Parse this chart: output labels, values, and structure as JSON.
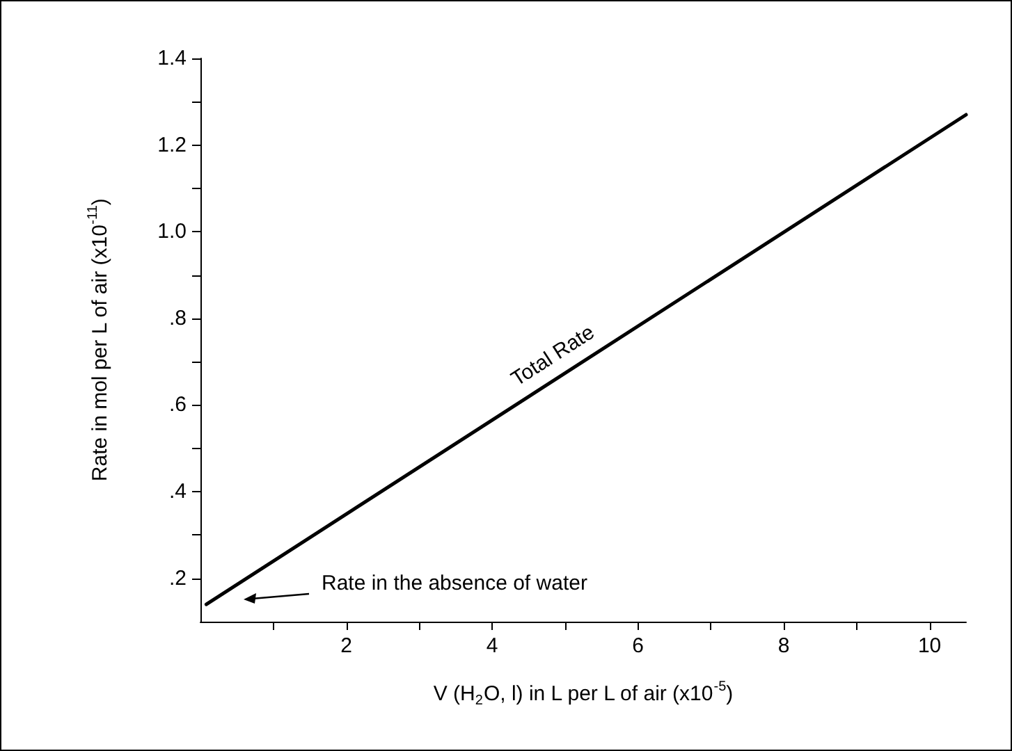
{
  "chart_data": {
    "type": "line",
    "xlabel": "V (H$_{2}$O, l) in L per L of air (x10$^{-5}$)",
    "ylabel": "Rate in mol per L of air (x10$^{-11}$)",
    "series": [
      {
        "x": [
          0.08,
          10.5
        ],
        "values": [
          0.14,
          1.27
        ],
        "color": "#000000"
      }
    ],
    "xlim": [
      0,
      10.5
    ],
    "xticks": [
      {
        "value": 1,
        "label": null
      },
      2,
      {
        "value": 3,
        "label": null
      },
      4,
      {
        "value": 5,
        "label": null
      },
      6,
      {
        "value": 7,
        "label": null
      },
      8,
      {
        "value": 9,
        "label": null
      },
      10
    ],
    "ylim": [
      0.1,
      1.4
    ],
    "yticks": [
      {
        "value": 0.2,
        "label": ".2"
      },
      {
        "value": 0.3,
        "label": null
      },
      {
        "value": 0.4,
        "label": ".4"
      },
      {
        "value": 0.5,
        "label": null
      },
      {
        "value": 0.6,
        "label": ".6"
      },
      {
        "value": 0.7,
        "label": null
      },
      {
        "value": 0.8,
        "label": ".8"
      },
      {
        "value": 0.9,
        "label": null
      },
      {
        "value": 1.0,
        "label": "1.0"
      },
      {
        "value": 1.1,
        "label": null
      },
      {
        "value": 1.2,
        "label": "1.2"
      },
      {
        "value": 1.3,
        "label": null
      },
      {
        "value": 1.4,
        "label": "1.4"
      }
    ],
    "marker": "none",
    "line_style": "solid",
    "annotations": [
      {
        "text": "Total Rate",
        "x": 5.0,
        "y": 0.67
      },
      "Rate in the absence of water"
    ]
  }
}
